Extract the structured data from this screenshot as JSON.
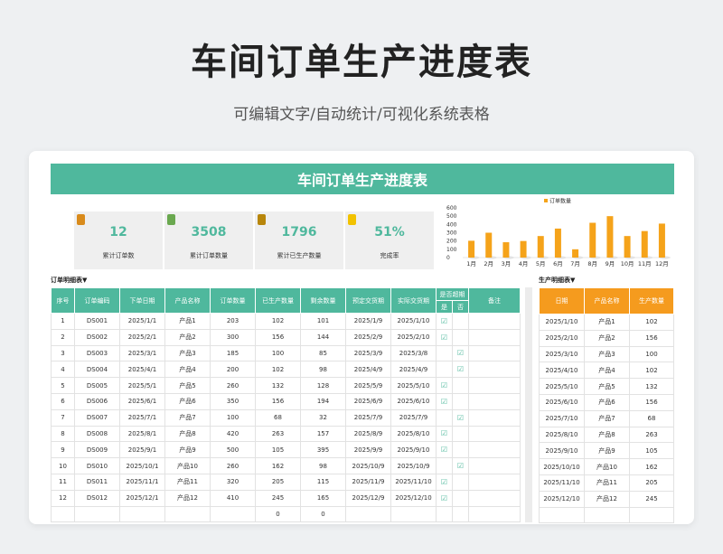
{
  "header": {
    "title": "车间订单生产进度表",
    "subtitle": "可编辑文字/自动统计/可视化系统表格"
  },
  "banner": "车间订单生产进度表",
  "kpis": [
    {
      "value": "12",
      "label": "累计订单数",
      "icon": "calculator-icon",
      "color": "#d98b1c"
    },
    {
      "value": "3508",
      "label": "累计订单数量",
      "icon": "document-icon",
      "color": "#6aa84f"
    },
    {
      "value": "1796",
      "label": "累计已生产数量",
      "icon": "alarm-clock-icon",
      "color": "#b8860b"
    },
    {
      "value": "51%",
      "label": "完成率",
      "icon": "thumbs-up-icon",
      "color": "#f2c200"
    }
  ],
  "chart_data": {
    "type": "bar",
    "legend": "订单数量",
    "legend_position": "top-center",
    "categories": [
      "1月",
      "2月",
      "3月",
      "4月",
      "5月",
      "6月",
      "7月",
      "8月",
      "9月",
      "10月",
      "11月",
      "12月"
    ],
    "values": [
      203,
      300,
      185,
      200,
      260,
      350,
      100,
      420,
      500,
      260,
      320,
      410
    ],
    "ylim": [
      0,
      600
    ],
    "yticks": [
      "0",
      "100",
      "200",
      "300",
      "400",
      "500",
      "600"
    ],
    "bar_color": "#f5a31a"
  },
  "labels": {
    "order_detail": "订单明细表▼",
    "production_detail": "生产明细表▼"
  },
  "orders": {
    "headers": [
      "序号",
      "订单编码",
      "下单日期",
      "产品名称",
      "订单数量",
      "已生产数量",
      "剩余数量",
      "预定交货期",
      "实际交货期",
      "是否超期",
      "备注"
    ],
    "overdue_sub": [
      "是",
      "否"
    ],
    "check": "☑",
    "rows": [
      [
        "1",
        "DS001",
        "2025/1/1",
        "产品1",
        "203",
        "102",
        "101",
        "2025/1/9",
        "2025/1/10",
        "yes"
      ],
      [
        "2",
        "DS002",
        "2025/2/1",
        "产品2",
        "300",
        "156",
        "144",
        "2025/2/9",
        "2025/2/10",
        "yes"
      ],
      [
        "3",
        "DS003",
        "2025/3/1",
        "产品3",
        "185",
        "100",
        "85",
        "2025/3/9",
        "2025/3/8",
        "no"
      ],
      [
        "4",
        "DS004",
        "2025/4/1",
        "产品4",
        "200",
        "102",
        "98",
        "2025/4/9",
        "2025/4/9",
        "no"
      ],
      [
        "5",
        "DS005",
        "2025/5/1",
        "产品5",
        "260",
        "132",
        "128",
        "2025/5/9",
        "2025/5/10",
        "yes"
      ],
      [
        "6",
        "DS006",
        "2025/6/1",
        "产品6",
        "350",
        "156",
        "194",
        "2025/6/9",
        "2025/6/10",
        "yes"
      ],
      [
        "7",
        "DS007",
        "2025/7/1",
        "产品7",
        "100",
        "68",
        "32",
        "2025/7/9",
        "2025/7/9",
        "no"
      ],
      [
        "8",
        "DS008",
        "2025/8/1",
        "产品8",
        "420",
        "263",
        "157",
        "2025/8/9",
        "2025/8/10",
        "yes"
      ],
      [
        "9",
        "DS009",
        "2025/9/1",
        "产品9",
        "500",
        "105",
        "395",
        "2025/9/9",
        "2025/9/10",
        "yes"
      ],
      [
        "10",
        "DS010",
        "2025/10/1",
        "产品10",
        "260",
        "162",
        "98",
        "2025/10/9",
        "2025/10/9",
        "no"
      ],
      [
        "11",
        "DS011",
        "2025/11/1",
        "产品11",
        "320",
        "205",
        "115",
        "2025/11/9",
        "2025/11/10",
        "yes"
      ],
      [
        "12",
        "DS012",
        "2025/12/1",
        "产品12",
        "410",
        "245",
        "165",
        "2025/12/9",
        "2025/12/10",
        "yes"
      ]
    ],
    "totals": [
      "0",
      "0"
    ]
  },
  "production": {
    "headers": [
      "日期",
      "产品名称",
      "生产数量"
    ],
    "rows": [
      [
        "2025/1/10",
        "产品1",
        "102"
      ],
      [
        "2025/2/10",
        "产品2",
        "156"
      ],
      [
        "2025/3/10",
        "产品3",
        "100"
      ],
      [
        "2025/4/10",
        "产品4",
        "102"
      ],
      [
        "2025/5/10",
        "产品5",
        "132"
      ],
      [
        "2025/6/10",
        "产品6",
        "156"
      ],
      [
        "2025/7/10",
        "产品7",
        "68"
      ],
      [
        "2025/8/10",
        "产品8",
        "263"
      ],
      [
        "2025/9/10",
        "产品9",
        "105"
      ],
      [
        "2025/10/10",
        "产品10",
        "162"
      ],
      [
        "2025/11/10",
        "产品11",
        "205"
      ],
      [
        "2025/12/10",
        "产品12",
        "245"
      ]
    ]
  }
}
